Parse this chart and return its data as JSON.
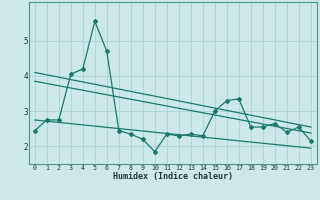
{
  "title": "",
  "xlabel": "Humidex (Indice chaleur)",
  "ylabel": "",
  "bg_color": "#cce8e8",
  "grid_color": "#aad4d4",
  "line_color": "#1a7a6a",
  "x_data": [
    0,
    1,
    2,
    3,
    4,
    5,
    6,
    7,
    8,
    9,
    10,
    11,
    12,
    13,
    14,
    15,
    16,
    17,
    18,
    19,
    20,
    21,
    22,
    23
  ],
  "y_data": [
    2.45,
    2.75,
    2.75,
    4.05,
    4.2,
    5.55,
    4.7,
    2.45,
    2.35,
    2.2,
    1.85,
    2.35,
    2.3,
    2.35,
    2.3,
    3.0,
    3.3,
    3.35,
    2.55,
    2.55,
    2.65,
    2.4,
    2.55,
    2.15
  ],
  "trend1_x": [
    0,
    23
  ],
  "trend1_y": [
    4.1,
    2.55
  ],
  "trend2_x": [
    0,
    23
  ],
  "trend2_y": [
    3.85,
    2.38
  ],
  "trend3_x": [
    0,
    23
  ],
  "trend3_y": [
    2.75,
    1.95
  ],
  "xlim": [
    -0.5,
    23.5
  ],
  "ylim": [
    1.5,
    6.1
  ],
  "yticks": [
    2,
    3,
    4,
    5
  ],
  "xticks": [
    0,
    1,
    2,
    3,
    4,
    5,
    6,
    7,
    8,
    9,
    10,
    11,
    12,
    13,
    14,
    15,
    16,
    17,
    18,
    19,
    20,
    21,
    22,
    23
  ]
}
